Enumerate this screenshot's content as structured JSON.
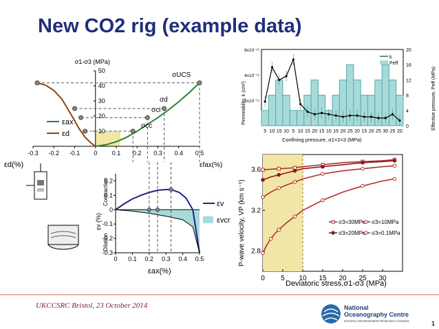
{
  "slide": {
    "title": "New CO2 rig (example data)",
    "footer": "UKCCSRC Bristol, 23 October 2014",
    "page_number": "1",
    "logo_line1": "National",
    "logo_line2": "Oceanography Centre",
    "logo_line3": "NATURAL ENVIRONMENT RESEARCH COUNCIL"
  },
  "colors": {
    "title": "#1f2f7a",
    "green_curve": "#2e7d32",
    "brown_curve": "#8b4513",
    "navy_curve": "#1a237e",
    "highlight_yellow": "#f2e6a6",
    "teal_fill": "#a8dada",
    "dark_red": "#9b1b1b"
  },
  "chart_data": [
    {
      "type": "line",
      "panel": "stress-strain",
      "ylabel": "σ1-σ3 (MPa)",
      "xlabel_left": "εd(%)",
      "xlabel_right": "εax(%)",
      "x_ticks": [
        "-0.3",
        "-0.2",
        "-0.1",
        "0",
        "0.1",
        "0.2",
        "0.3",
        "0.4",
        "0.5"
      ],
      "y_ticks": [
        "10",
        "20",
        "30",
        "40",
        "50"
      ],
      "xlim": [
        -0.3,
        0.5
      ],
      "ylim": [
        0,
        50
      ],
      "series": [
        {
          "name": "εax",
          "x": [
            0,
            0.05,
            0.1,
            0.15,
            0.2,
            0.25,
            0.3,
            0.35,
            0.4,
            0.45,
            0.5
          ],
          "y": [
            0,
            1,
            3,
            6,
            10,
            14.5,
            19,
            24,
            29.5,
            35.5,
            42
          ]
        },
        {
          "name": "εd",
          "x": [
            0,
            -0.02,
            -0.05,
            -0.08,
            -0.1,
            -0.13,
            -0.16,
            -0.2,
            -0.24,
            -0.28
          ],
          "y": [
            0,
            2,
            6,
            12,
            17,
            24,
            31,
            37,
            40.5,
            42
          ]
        }
      ],
      "annotations": [
        "σUCS",
        "σd",
        "σci",
        "σcc",
        "εfax(%)"
      ],
      "markers_y": [
        10,
        20,
        25,
        42
      ]
    },
    {
      "type": "line",
      "panel": "volumetric-strain",
      "ylabel": "εv (%)",
      "xlabel": "εax(%)",
      "side_labels": [
        "Contraction",
        "Dilation"
      ],
      "x_ticks": [
        "0",
        "0.1",
        "0.2",
        "0.3",
        "0.4",
        "0.5"
      ],
      "y_ticks": [
        "0.2",
        "0.1",
        "0",
        "-0.1",
        "-0.2",
        "-0.3"
      ],
      "xlim": [
        0,
        0.5
      ],
      "ylim": [
        -0.3,
        0.25
      ],
      "series": [
        {
          "name": "εv",
          "x": [
            0,
            0.05,
            0.1,
            0.15,
            0.2,
            0.25,
            0.3,
            0.33,
            0.38,
            0.42,
            0.46,
            0.5
          ],
          "y": [
            0,
            0.04,
            0.075,
            0.1,
            0.12,
            0.135,
            0.14,
            0.14,
            0.12,
            0.08,
            0.0,
            -0.3
          ]
        },
        {
          "name": "εvcr",
          "x": [
            0,
            0.1,
            0.2,
            0.3,
            0.4,
            0.46,
            0.5
          ],
          "y": [
            0,
            -0.01,
            -0.025,
            -0.045,
            -0.07,
            -0.12,
            -0.3
          ]
        }
      ]
    },
    {
      "type": "bar",
      "panel": "permeability",
      "xlabel": "Confining pressure, σ1=2=3 (MPa)",
      "ylabel_left": "Permeability, k (cm²)",
      "ylabel_right": "Effective pressure, Peff (MPa)",
      "categories": [
        "5",
        "10",
        "15",
        "10",
        "5",
        "10",
        "15",
        "20",
        "15",
        "10",
        "15",
        "20",
        "25",
        "20",
        "15",
        "20",
        "25",
        "30",
        "25",
        "20"
      ],
      "y_left_ticks": [
        "2x10⁻¹¹",
        "4x10⁻¹¹",
        "6x10⁻¹¹"
      ],
      "y_right_ticks": [
        "0",
        "4",
        "8",
        "12",
        "16",
        "20"
      ],
      "legend": [
        "k",
        "Peff"
      ],
      "peff_values": [
        4,
        8,
        12,
        8,
        4,
        4,
        8,
        12,
        8,
        4,
        8,
        12,
        16,
        12,
        8,
        8,
        12,
        16,
        12,
        8
      ],
      "k_values": [
        1.9,
        4.6,
        3.6,
        3.9,
        5.2,
        1.7,
        1.1,
        0.9,
        1.0,
        0.9,
        0.8,
        0.7,
        0.8,
        0.8,
        0.7,
        0.7,
        0.6,
        0.6,
        0.9,
        0.4
      ]
    },
    {
      "type": "line",
      "panel": "p-wave-velocity",
      "xlabel": "Deviatoric stress,σ1-σ3 (MPa)",
      "ylabel": "P-wave velocity, VP (km s⁻¹)",
      "x_ticks": [
        "0",
        "5",
        "10",
        "15",
        "20",
        "25",
        "30"
      ],
      "y_ticks": [
        "2.8",
        "3.2",
        "3.6"
      ],
      "xlim": [
        0,
        35
      ],
      "ylim": [
        2.6,
        3.75
      ],
      "series": [
        {
          "name": "σ3=30MPa",
          "x": [
            0,
            2,
            4,
            6,
            8,
            10,
            15,
            20,
            25,
            30,
            33
          ],
          "y": [
            3.6,
            3.605,
            3.61,
            3.615,
            3.62,
            3.63,
            3.65,
            3.67,
            3.68,
            3.69,
            3.7
          ]
        },
        {
          "name": "σ3=20MPa",
          "x": [
            0,
            2,
            4,
            6,
            8,
            10,
            15,
            20,
            25,
            30,
            33
          ],
          "y": [
            3.5,
            3.53,
            3.55,
            3.57,
            3.59,
            3.61,
            3.63,
            3.65,
            3.67,
            3.68,
            3.69
          ]
        },
        {
          "name": "σ3=10MPa",
          "x": [
            0,
            2,
            4,
            6,
            8,
            10,
            15,
            20,
            25,
            30,
            33
          ],
          "y": [
            3.33,
            3.38,
            3.42,
            3.45,
            3.48,
            3.51,
            3.56,
            3.59,
            3.61,
            3.63,
            3.64
          ]
        },
        {
          "name": "σ3=0.1MPa",
          "x": [
            0,
            1,
            2,
            3,
            4,
            6,
            8,
            10,
            15,
            20,
            25,
            30,
            33
          ],
          "y": [
            2.78,
            2.86,
            2.92,
            2.97,
            3.01,
            3.08,
            3.14,
            3.2,
            3.3,
            3.38,
            3.44,
            3.49,
            3.51
          ]
        }
      ]
    }
  ]
}
